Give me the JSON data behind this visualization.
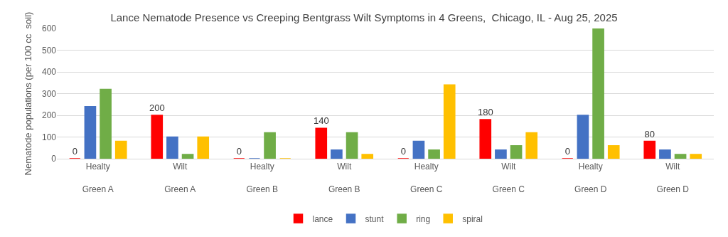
{
  "chart_data": {
    "type": "bar",
    "title": "Lance Nematode Presence vs Creeping Bentgrass Wilt Symptoms in 4 Greens,  Chicago, IL - Aug 25, 2025",
    "ylabel": "Nematode populations (per 100 cc  soil)",
    "categories": [
      "Healty\nGreen A",
      "Wilt\nGreen A",
      "Healty\nGreen B",
      "Wilt\nGreen B",
      "Healty\nGreen C",
      "Wilt\nGreen C",
      "Healty\nGreen D",
      "Wilt\nGreen D"
    ],
    "series": [
      {
        "name": "lance",
        "color": "#ff0000",
        "values": [
          0,
          200,
          0,
          140,
          0,
          180,
          0,
          80
        ],
        "value_labels": [
          "0",
          "200",
          "0",
          "140",
          "0",
          "180",
          "0",
          "80"
        ]
      },
      {
        "name": "stunt",
        "color": "#4472c4",
        "values": [
          240,
          100,
          0,
          40,
          80,
          40,
          200,
          40
        ]
      },
      {
        "name": "ring",
        "color": "#70ad47",
        "values": [
          320,
          20,
          120,
          120,
          40,
          60,
          600,
          20
        ]
      },
      {
        "name": "spiral",
        "color": "#ffc000",
        "values": [
          80,
          100,
          0,
          20,
          340,
          120,
          60,
          20
        ]
      }
    ],
    "ylim": [
      0,
      600
    ],
    "yticks": [
      0,
      100,
      200,
      300,
      400,
      500,
      600
    ],
    "grid": "y",
    "legend": "bottom"
  }
}
